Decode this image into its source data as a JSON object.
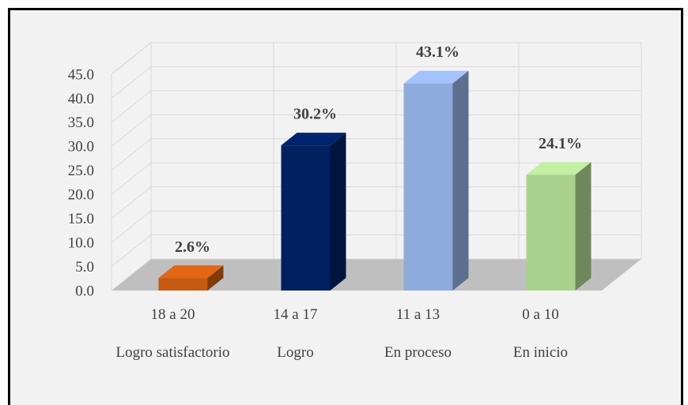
{
  "chart_data": {
    "type": "bar3d",
    "categories": [
      "18 a 20",
      "14 a 17",
      "11 a 13",
      "0 a 10"
    ],
    "category_groups": [
      "Logro satisfactorio",
      "Logro",
      "En proceso",
      "En inicio"
    ],
    "values": [
      2.6,
      30.2,
      43.1,
      24.1
    ],
    "value_labels": [
      "2.6%",
      "30.2%",
      "43.1%",
      "24.1%"
    ],
    "colors": [
      "#c55a11",
      "#002060",
      "#8faadc",
      "#a9d18e"
    ],
    "ylim": [
      0,
      45
    ],
    "yticks": [
      {
        "value": 0,
        "label": "0.0"
      },
      {
        "value": 5,
        "label": "5.0"
      },
      {
        "value": 10,
        "label": "10.0"
      },
      {
        "value": 15,
        "label": "15.0"
      },
      {
        "value": 20,
        "label": "20.0"
      },
      {
        "value": 25,
        "label": "25.0"
      },
      {
        "value": 30,
        "label": "30.0"
      },
      {
        "value": 35,
        "label": "35.0"
      },
      {
        "value": 40,
        "label": "40.0"
      },
      {
        "value": 45,
        "label": "45.0"
      }
    ],
    "grid": true
  }
}
